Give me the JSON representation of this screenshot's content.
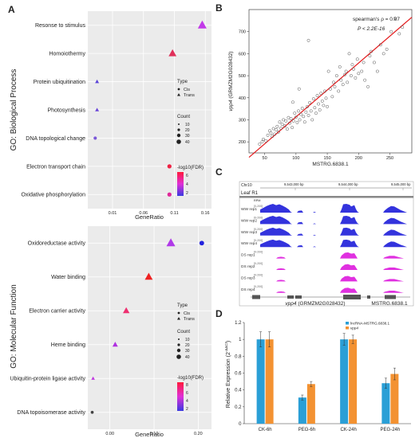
{
  "panels": {
    "a": "A",
    "b": "B",
    "c": "C",
    "d": "D"
  },
  "chart_data": [
    {
      "panel": "A-top",
      "type": "scatter",
      "ylabel": "GO: Biological Process",
      "xlabel": "GeneRatio",
      "xticks": [
        "0.01",
        "0.06",
        "0.11",
        "0.16"
      ],
      "xlim": [
        -0.03,
        0.17
      ],
      "terms": [
        "Resonse to stimulus",
        "Homoiothermy",
        "Protein ubiquitination",
        "Photosynthesis",
        "DNA topological change",
        "Electron transport chain",
        "Oxidative phosphorylation"
      ],
      "points": [
        {
          "term": "Resonse to stimulus",
          "x": 0.155,
          "type": "Trans",
          "count": 40,
          "color": "#c23ae8"
        },
        {
          "term": "Homoiothermy",
          "x": 0.107,
          "type": "Trans",
          "count": 30,
          "color": "#e0305a"
        },
        {
          "term": "Protein ubiquitination",
          "x": -0.015,
          "type": "Trans",
          "count": 5,
          "color": "#5a44d8"
        },
        {
          "term": "Photosynthesis",
          "x": -0.015,
          "type": "Trans",
          "count": 5,
          "color": "#6a46d8"
        },
        {
          "term": "DNA topological change",
          "x": -0.018,
          "type": "Cis",
          "count": 3,
          "color": "#7a58d8"
        },
        {
          "term": "Electron transport chain",
          "x": 0.102,
          "type": "Cis",
          "count": 6,
          "color": "#ee2244"
        },
        {
          "term": "Oxidative phosphorylation",
          "x": 0.102,
          "type": "Cis",
          "count": 6,
          "color": "#e0289a"
        }
      ],
      "legend": {
        "type_title": "Type",
        "types": [
          "Cis",
          "Trans"
        ],
        "count_title": "Count",
        "counts": [
          "10",
          "20",
          "30",
          "40"
        ],
        "color_title": "-log10(FDR)",
        "color_ticks": [
          "6",
          "4",
          "2"
        ]
      }
    },
    {
      "panel": "A-bottom",
      "type": "scatter",
      "ylabel": "GO: Molecular Function",
      "xlabel": "GeneRatio",
      "xticks": [
        "0.00",
        "0.10",
        "0.20"
      ],
      "xlim": [
        -0.05,
        0.23
      ],
      "terms": [
        "Oxidoreductase activity",
        "Water binding",
        "Electron carrier activity",
        "Heme binding",
        "Ubiquitin-protein ligase activity",
        "DNA topoisomerase activity"
      ],
      "points": [
        {
          "term": "Oxidoreductase activity",
          "x": 0.138,
          "type": "Trans",
          "count": 40,
          "color": "#b03ae8"
        },
        {
          "term": "Oxidoreductase activity",
          "x": 0.208,
          "type": "Cis",
          "count": 8,
          "color": "#2222dd"
        },
        {
          "term": "Water binding",
          "x": 0.088,
          "type": "Trans",
          "count": 30,
          "color": "#ee2222"
        },
        {
          "term": "Electron carrier activity",
          "x": 0.037,
          "type": "Trans",
          "count": 20,
          "color": "#ee3070"
        },
        {
          "term": "Heme binding",
          "x": 0.012,
          "type": "Trans",
          "count": 12,
          "color": "#b030e0"
        },
        {
          "term": "Ubiquitin-protein ligase activity",
          "x": -0.038,
          "type": "Trans",
          "count": 4,
          "color": "#c03ae0"
        },
        {
          "term": "DNA topoisomerase activity",
          "x": -0.04,
          "type": "Cis",
          "count": 2,
          "color": "#444444"
        }
      ],
      "legend": {
        "type_title": "Type",
        "types": [
          "Cis",
          "Trans"
        ],
        "count_title": "Count",
        "counts": [
          "10",
          "20",
          "30",
          "40"
        ],
        "color_title": "-log10(FDR)",
        "color_ticks": [
          "8",
          "6",
          "4",
          "2"
        ]
      }
    },
    {
      "panel": "B",
      "type": "scatter",
      "xlabel": "MSTRG.6838.1",
      "ylabel": "vpp4 (GRMZM2G028432)",
      "xlim": [
        25,
        285
      ],
      "ylim": [
        150,
        800
      ],
      "xticks": [
        50,
        100,
        150,
        200,
        250
      ],
      "yticks": [
        200,
        300,
        400,
        500,
        600,
        700
      ],
      "annotation_rho": "spearman's ρ = 0.87",
      "annotation_p": "P < 2.2E-16",
      "fit_line": {
        "x": [
          25,
          285
        ],
        "y": [
          130,
          765
        ]
      },
      "points": [
        [
          42,
          190
        ],
        [
          46,
          200
        ],
        [
          48,
          212
        ],
        [
          52,
          205
        ],
        [
          55,
          230
        ],
        [
          58,
          250
        ],
        [
          60,
          240
        ],
        [
          62,
          225
        ],
        [
          64,
          260
        ],
        [
          66,
          235
        ],
        [
          68,
          255
        ],
        [
          70,
          270
        ],
        [
          72,
          245
        ],
        [
          74,
          290
        ],
        [
          76,
          262
        ],
        [
          78,
          280
        ],
        [
          80,
          300
        ],
        [
          82,
          272
        ],
        [
          84,
          295
        ],
        [
          86,
          258
        ],
        [
          88,
          310
        ],
        [
          90,
          285
        ],
        [
          92,
          305
        ],
        [
          94,
          265
        ],
        [
          96,
          295
        ],
        [
          98,
          330
        ],
        [
          100,
          312
        ],
        [
          102,
          288
        ],
        [
          104,
          340
        ],
        [
          106,
          300
        ],
        [
          108,
          325
        ],
        [
          110,
          352
        ],
        [
          112,
          315
        ],
        [
          114,
          290
        ],
        [
          116,
          335
        ],
        [
          118,
          360
        ],
        [
          120,
          320
        ],
        [
          122,
          378
        ],
        [
          124,
          340
        ],
        [
          126,
          300
        ],
        [
          128,
          395
        ],
        [
          130,
          355
        ],
        [
          132,
          330
        ],
        [
          134,
          410
        ],
        [
          136,
          372
        ],
        [
          138,
          345
        ],
        [
          140,
          420
        ],
        [
          142,
          385
        ],
        [
          144,
          365
        ],
        [
          146,
          430
        ],
        [
          148,
          398
        ],
        [
          150,
          360
        ],
        [
          152,
          520
        ],
        [
          155,
          440
        ],
        [
          158,
          405
        ],
        [
          160,
          470
        ],
        [
          162,
          450
        ],
        [
          165,
          500
        ],
        [
          168,
          430
        ],
        [
          170,
          540
        ],
        [
          172,
          480
        ],
        [
          175,
          460
        ],
        [
          178,
          505
        ],
        [
          180,
          520
        ],
        [
          182,
          470
        ],
        [
          185,
          600
        ],
        [
          188,
          500
        ],
        [
          190,
          550
        ],
        [
          192,
          530
        ],
        [
          195,
          490
        ],
        [
          198,
          575
        ],
        [
          200,
          510
        ],
        [
          205,
          520
        ],
        [
          208,
          560
        ],
        [
          210,
          480
        ],
        [
          215,
          450
        ],
        [
          218,
          590
        ],
        [
          220,
          610
        ],
        [
          225,
          560
        ],
        [
          230,
          520
        ],
        [
          235,
          640
        ],
        [
          240,
          600
        ],
        [
          245,
          620
        ],
        [
          252,
          700
        ],
        [
          258,
          760
        ],
        [
          265,
          690
        ],
        [
          270,
          720
        ],
        [
          120,
          660
        ],
        [
          105,
          440
        ],
        [
          95,
          380
        ]
      ]
    },
    {
      "panel": "C",
      "type": "table",
      "chrom": "Chr10",
      "coords": [
        "9,543,000 bp",
        "9,544,000 bp",
        "9,545,000 bp"
      ],
      "leaf_label": "Leaf R1",
      "rpm_label": "RPM",
      "range_label": "[0-200]",
      "tracks": [
        {
          "name": "WW rep1",
          "color": "#3333dd",
          "group": "WW"
        },
        {
          "name": "WW rep2",
          "color": "#3333dd",
          "group": "WW"
        },
        {
          "name": "WW rep3",
          "color": "#3333dd",
          "group": "WW"
        },
        {
          "name": "WW rep4",
          "color": "#3333dd",
          "group": "WW"
        },
        {
          "name": "DS rep1",
          "color": "#e030e0",
          "group": "DS"
        },
        {
          "name": "DS rep2",
          "color": "#e030e0",
          "group": "DS"
        },
        {
          "name": "DS rep3",
          "color": "#e030e0",
          "group": "DS"
        },
        {
          "name": "DS rep4",
          "color": "#e030e0",
          "group": "DS"
        }
      ],
      "gene1_italic": "vpp4",
      "gene1_rest": " (GRMZM2G028432)",
      "gene2": "MSTRG.6838.1"
    },
    {
      "panel": "D",
      "type": "bar",
      "categories": [
        "CK-6h",
        "PEG-6h",
        "CK-24h",
        "PEG-24h"
      ],
      "series": [
        {
          "name": "lncRNA-MSTRG.6838.1",
          "color": "#2a9fd6",
          "values": [
            1.0,
            0.31,
            1.0,
            0.48
          ],
          "errors": [
            0.09,
            0.03,
            0.07,
            0.06
          ]
        },
        {
          "name": "vpp4",
          "color": "#f39232",
          "values": [
            1.0,
            0.47,
            1.0,
            0.59
          ],
          "errors": [
            0.09,
            0.03,
            0.05,
            0.07
          ]
        }
      ],
      "ylabel": "Relative Expression (2^-ΔΔCt)",
      "ylabel_main": "Relative Expression (2",
      "ylabel_sup": "-ΔΔCt",
      "ylabel_end": ")",
      "ylim": [
        0,
        1.2
      ],
      "yticks": [
        "0",
        "0.2",
        "0.4",
        "0.6",
        "0.8",
        "1",
        "1.2"
      ]
    }
  ]
}
